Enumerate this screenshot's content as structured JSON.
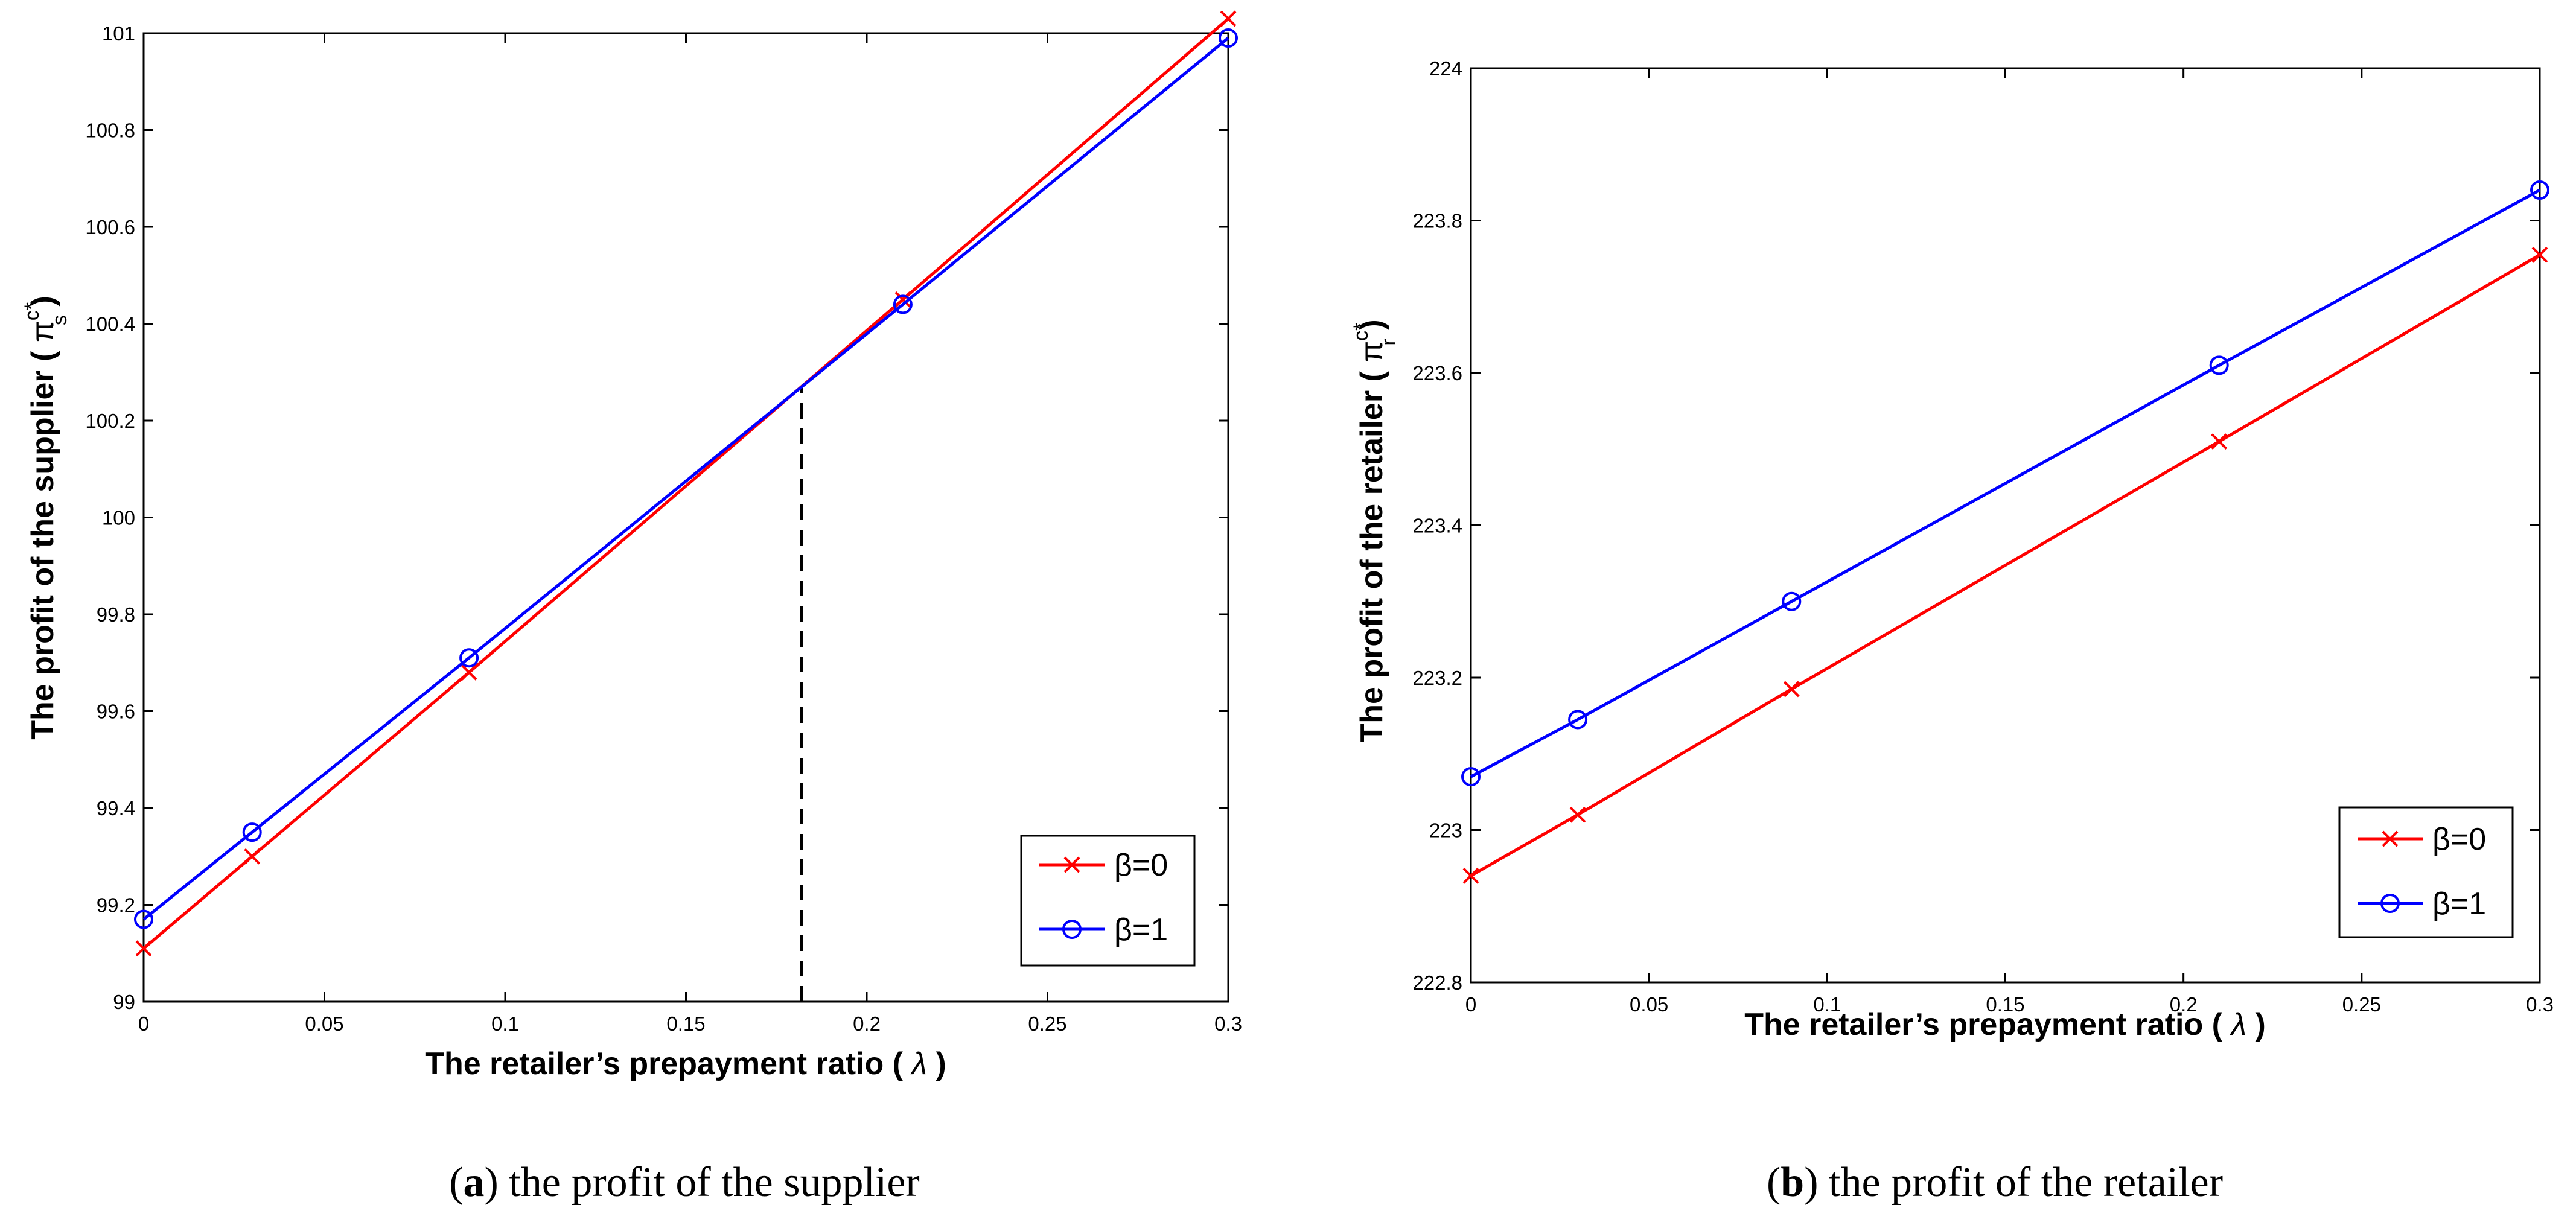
{
  "chart_data": [
    {
      "type": "line",
      "caption_letter": "a",
      "caption_text": ") the profit of the supplier",
      "xlabel_main": "The retailer’s prepayment ratio ( ",
      "xlabel_symbol": "λ",
      "xlabel_end": " )",
      "ylabel_main": "The profit of the supplier ( ",
      "ylabel_symbol": "π",
      "ylabel_sup": "c*",
      "ylabel_sub": "s",
      "ylabel_end": " )",
      "xlim": [
        0,
        0.3
      ],
      "ylim": [
        99,
        101
      ],
      "xticks": [
        0,
        0.05,
        0.1,
        0.15,
        0.2,
        0.25,
        0.3
      ],
      "xtick_labels": [
        "0",
        "0.05",
        "0.1",
        "0.15",
        "0.2",
        "0.25",
        "0.3"
      ],
      "yticks": [
        99,
        99.2,
        99.4,
        99.6,
        99.8,
        100,
        100.2,
        100.4,
        100.6,
        100.8,
        101
      ],
      "ytick_labels": [
        "99",
        "99.2",
        "99.4",
        "99.6",
        "99.8",
        "100",
        "100.2",
        "100.4",
        "100.6",
        "100.8",
        "101"
      ],
      "grid": false,
      "legend_position": "bottom-right",
      "reference_line": {
        "x": 0.182,
        "y_from": 99,
        "y_to": 100.27,
        "style": "dashed"
      },
      "series": [
        {
          "name": "β=0",
          "color": "#ff0000",
          "marker": "x",
          "x": [
            0,
            0.03,
            0.09,
            0.21,
            0.3
          ],
          "y": [
            99.11,
            99.3,
            99.68,
            100.45,
            101.03
          ]
        },
        {
          "name": "β=1",
          "color": "#0000ff",
          "marker": "o",
          "x": [
            0,
            0.03,
            0.09,
            0.21,
            0.3
          ],
          "y": [
            99.17,
            99.35,
            99.71,
            100.44,
            100.99
          ]
        }
      ]
    },
    {
      "type": "line",
      "caption_letter": "b",
      "caption_text": ") the profit of the retailer",
      "xlabel_main": "The retailer’s prepayment ratio ( ",
      "xlabel_symbol": "λ",
      "xlabel_end": " )",
      "ylabel_main": "The profit of the retailer ( ",
      "ylabel_symbol": "π",
      "ylabel_sup": "c*",
      "ylabel_sub": "r",
      "ylabel_end": " )",
      "xlim": [
        0,
        0.3
      ],
      "ylim": [
        222.8,
        224
      ],
      "xticks": [
        0,
        0.05,
        0.1,
        0.15,
        0.2,
        0.25,
        0.3
      ],
      "xtick_labels": [
        "0",
        "0.05",
        "0.1",
        "0.15",
        "0.2",
        "0.25",
        "0.3"
      ],
      "yticks": [
        222.8,
        223,
        223.2,
        223.4,
        223.6,
        223.8,
        224
      ],
      "ytick_labels": [
        "222.8",
        "223",
        "223.2",
        "223.4",
        "223.6",
        "223.8",
        "224"
      ],
      "grid": false,
      "legend_position": "bottom-right",
      "series": [
        {
          "name": "β=0",
          "color": "#ff0000",
          "marker": "x",
          "x": [
            0,
            0.03,
            0.09,
            0.21,
            0.3
          ],
          "y": [
            222.94,
            223.02,
            223.185,
            223.51,
            223.755
          ]
        },
        {
          "name": "β=1",
          "color": "#0000ff",
          "marker": "o",
          "x": [
            0,
            0.03,
            0.09,
            0.21,
            0.3
          ],
          "y": [
            223.07,
            223.145,
            223.3,
            223.61,
            223.84
          ]
        }
      ]
    }
  ]
}
